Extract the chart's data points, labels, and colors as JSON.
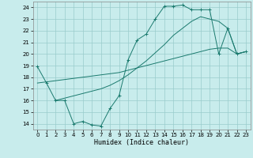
{
  "xlabel": "Humidex (Indice chaleur)",
  "bg_color": "#c8ecec",
  "grid_color": "#99cccc",
  "line_color": "#1a7a6e",
  "xlim": [
    -0.5,
    23.5
  ],
  "ylim": [
    13.5,
    24.5
  ],
  "xticks": [
    0,
    1,
    2,
    3,
    4,
    5,
    6,
    7,
    8,
    9,
    10,
    11,
    12,
    13,
    14,
    15,
    16,
    17,
    18,
    19,
    20,
    21,
    22,
    23
  ],
  "yticks": [
    14,
    15,
    16,
    17,
    18,
    19,
    20,
    21,
    22,
    23,
    24
  ],
  "curve1": {
    "x": [
      0,
      1,
      2,
      3,
      4,
      5,
      6,
      7,
      8,
      9,
      10,
      11,
      12,
      13,
      14,
      15,
      16,
      17,
      18,
      19,
      20,
      21,
      22,
      23
    ],
    "y": [
      18.9,
      17.5,
      16.0,
      16.0,
      14.0,
      14.2,
      13.9,
      13.8,
      15.3,
      16.4,
      19.5,
      21.2,
      21.7,
      23.0,
      24.1,
      24.1,
      24.2,
      23.8,
      23.8,
      23.8,
      20.0,
      22.2,
      20.0,
      20.2
    ]
  },
  "curve2": {
    "x": [
      0,
      1,
      2,
      3,
      4,
      5,
      6,
      7,
      8,
      9,
      10,
      11,
      12,
      13,
      14,
      15,
      16,
      17,
      18,
      19,
      20,
      21,
      22,
      23
    ],
    "y": [
      17.5,
      17.6,
      17.7,
      17.8,
      17.9,
      18.0,
      18.1,
      18.2,
      18.3,
      18.4,
      18.6,
      18.8,
      19.0,
      19.2,
      19.4,
      19.6,
      19.8,
      20.0,
      20.2,
      20.4,
      20.5,
      20.5,
      20.0,
      20.2
    ]
  },
  "curve3": {
    "x": [
      2,
      3,
      4,
      5,
      6,
      7,
      8,
      9,
      10,
      11,
      12,
      13,
      14,
      15,
      16,
      17,
      18,
      19,
      20,
      21,
      22,
      23
    ],
    "y": [
      16.0,
      16.2,
      16.4,
      16.6,
      16.8,
      17.0,
      17.3,
      17.7,
      18.2,
      18.8,
      19.4,
      20.1,
      20.8,
      21.6,
      22.2,
      22.8,
      23.2,
      23.0,
      22.8,
      22.2,
      20.0,
      20.2
    ]
  }
}
